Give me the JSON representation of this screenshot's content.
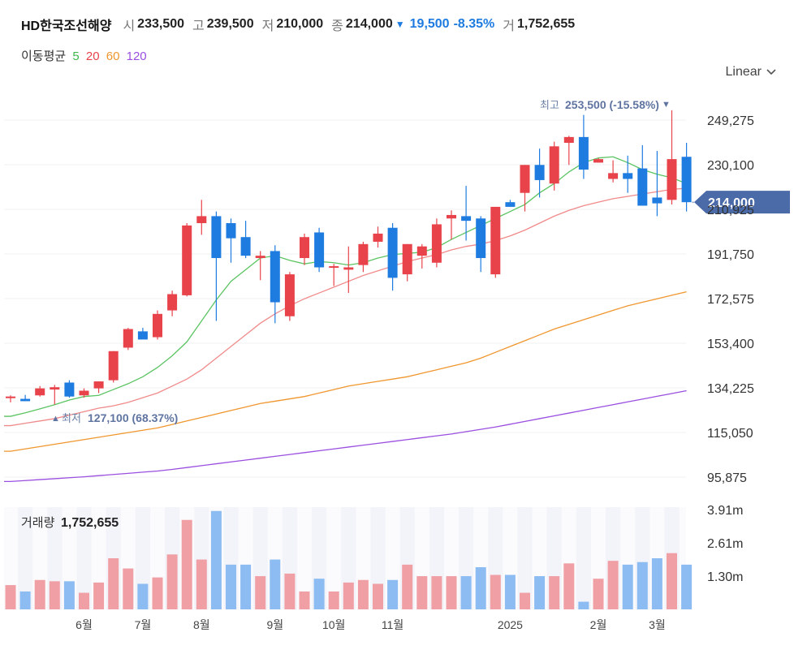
{
  "header": {
    "name": "HD한국조선해양",
    "open_label": "시",
    "open": "233,500",
    "high_label": "고",
    "high": "239,500",
    "low_label": "저",
    "low": "210,000",
    "close_label": "종",
    "close": "214,000",
    "change_arrow": "▼",
    "change": "19,500",
    "change_pct": "-8.35%",
    "volume_label": "거",
    "volume": "1,752,655"
  },
  "ma_legend": {
    "label": "이동평균",
    "periods": [
      {
        "text": "5",
        "color": "#3cb84a"
      },
      {
        "text": "20",
        "color": "#e8434a"
      },
      {
        "text": "60",
        "color": "#f0962e"
      },
      {
        "text": "120",
        "color": "#9a4fe0"
      }
    ]
  },
  "scale_toggle": {
    "label": "Linear",
    "icon": "chevron-down-icon"
  },
  "chart_data": {
    "type": "candlestick",
    "price_ticks": [
      "249,275",
      "230,100",
      "210,925",
      "191,750",
      "172,575",
      "153,400",
      "134,225",
      "115,050",
      "95,875"
    ],
    "price_range": [
      95875,
      249275
    ],
    "current_price_label": "214,000",
    "current_price": 214000,
    "max_annotation": {
      "label": "최고",
      "value": "253,500 (-15.58%)",
      "marker": "▼"
    },
    "min_annotation": {
      "label": "최저",
      "value": "127,100 (68.37%)",
      "marker": "▲"
    },
    "x_labels": [
      "6월",
      "7월",
      "8월",
      "9월",
      "10월",
      "11월",
      "2025",
      "2월",
      "3월"
    ],
    "x_label_index": [
      5,
      9,
      13,
      18,
      22,
      26,
      34,
      40,
      44
    ],
    "candles": [
      [
        130000,
        131000,
        128000,
        130500
      ],
      [
        129500,
        131200,
        128500,
        128500
      ],
      [
        131000,
        135000,
        130500,
        134000
      ],
      [
        133500,
        135500,
        127100,
        134500
      ],
      [
        136500,
        137500,
        130000,
        130500
      ],
      [
        131000,
        134000,
        130000,
        133000
      ],
      [
        134000,
        137000,
        132000,
        137000
      ],
      [
        137500,
        150000,
        136500,
        150000
      ],
      [
        151500,
        160000,
        150500,
        159500
      ],
      [
        158500,
        160000,
        156000,
        155000
      ],
      [
        156000,
        167500,
        155000,
        166000
      ],
      [
        167500,
        176000,
        165000,
        174500
      ],
      [
        174000,
        205000,
        173500,
        204000
      ],
      [
        205000,
        215000,
        200000,
        208000
      ],
      [
        208000,
        210000,
        163000,
        190000
      ],
      [
        205000,
        207000,
        188000,
        198500
      ],
      [
        199000,
        206000,
        190000,
        191000
      ],
      [
        190000,
        193000,
        180500,
        191000
      ],
      [
        193000,
        195500,
        162000,
        171000
      ],
      [
        165000,
        184000,
        163000,
        183000
      ],
      [
        190000,
        200500,
        187000,
        199000
      ],
      [
        201000,
        203000,
        184000,
        186000
      ],
      [
        186000,
        187500,
        178000,
        186500
      ],
      [
        185000,
        195000,
        175000,
        186000
      ],
      [
        187000,
        197000,
        184000,
        196000
      ],
      [
        197000,
        203500,
        194500,
        200500
      ],
      [
        203000,
        205000,
        176000,
        181500
      ],
      [
        183000,
        196000,
        180000,
        196000
      ],
      [
        191000,
        196000,
        185500,
        195000
      ],
      [
        188000,
        207000,
        186000,
        204500
      ],
      [
        207000,
        210500,
        198000,
        208500
      ],
      [
        208000,
        221000,
        197500,
        206000
      ],
      [
        207000,
        208000,
        184000,
        190000
      ],
      [
        183000,
        212000,
        181500,
        212000
      ],
      [
        214000,
        215000,
        212500,
        212000
      ],
      [
        218000,
        230000,
        210000,
        230000
      ],
      [
        230000,
        237000,
        216000,
        223500
      ],
      [
        222000,
        240000,
        219000,
        238000
      ],
      [
        239500,
        242500,
        230000,
        242000
      ],
      [
        242000,
        251500,
        224000,
        228000
      ],
      [
        231000,
        233000,
        231000,
        232500
      ],
      [
        224000,
        232000,
        222500,
        226500
      ],
      [
        226500,
        234000,
        218000,
        224000
      ],
      [
        228500,
        238500,
        213500,
        212500
      ],
      [
        216000,
        236000,
        208000,
        213500
      ],
      [
        215000,
        253500,
        213000,
        232500
      ],
      [
        233500,
        239500,
        210000,
        214000
      ]
    ],
    "ma5": [
      122000,
      123500,
      125200,
      127000,
      129000,
      130500,
      131000,
      133500,
      136000,
      139000,
      143000,
      148000,
      154000,
      163000,
      172000,
      180000,
      185000,
      190000,
      191000,
      189000,
      187500,
      188500,
      188000,
      187000,
      188000,
      190000,
      191500,
      192000,
      192500,
      194500,
      198000,
      201000,
      204000,
      207000,
      210000,
      213000,
      218000,
      222000,
      227000,
      231000,
      233000,
      233500,
      231000,
      228000,
      226000,
      224500,
      222000
    ],
    "ma20": [
      118000,
      119000,
      120000,
      121000,
      122500,
      124000,
      125500,
      126500,
      128000,
      130000,
      132000,
      135000,
      138000,
      142000,
      147000,
      152000,
      157000,
      162000,
      166000,
      169500,
      172500,
      175000,
      177500,
      180000,
      182500,
      184500,
      186500,
      188500,
      190000,
      191500,
      193500,
      195000,
      196000,
      197500,
      199500,
      202000,
      205000,
      208000,
      210500,
      212500,
      214000,
      215500,
      216500,
      217500,
      218500,
      219500,
      220000
    ],
    "ma60": [
      107000,
      108000,
      109000,
      110000,
      111000,
      112000,
      113000,
      114000,
      115000,
      116000,
      117000,
      118500,
      120000,
      121500,
      123000,
      124500,
      126000,
      127500,
      128500,
      129500,
      130500,
      132000,
      133500,
      135000,
      136000,
      137000,
      138000,
      139000,
      140500,
      142000,
      143500,
      145000,
      147000,
      149500,
      152000,
      154500,
      157000,
      159500,
      161500,
      163500,
      165500,
      167500,
      169500,
      171000,
      172500,
      174000,
      175500
    ],
    "ma120": [
      94000,
      94400,
      94800,
      95200,
      95600,
      96000,
      96500,
      97000,
      97500,
      98000,
      98500,
      99200,
      100000,
      100800,
      101600,
      102400,
      103200,
      104000,
      104800,
      105600,
      106400,
      107200,
      108000,
      108800,
      109600,
      110400,
      111200,
      112000,
      112800,
      113600,
      114400,
      115400,
      116400,
      117400,
      118600,
      119800,
      121000,
      122200,
      123400,
      124600,
      125800,
      127000,
      128200,
      129400,
      130600,
      131800,
      133000
    ],
    "volume": {
      "label": "거래량",
      "value": "1,752,655",
      "ticks": [
        "3.91m",
        "2.61m",
        "1.30m"
      ],
      "tick_values": [
        3.91,
        2.61,
        1.3
      ],
      "bars": [
        0.95,
        0.7,
        1.15,
        1.1,
        1.1,
        0.65,
        1.05,
        2.0,
        1.6,
        1.0,
        1.25,
        2.15,
        3.5,
        1.95,
        3.85,
        1.75,
        1.75,
        1.3,
        1.95,
        1.4,
        0.7,
        1.2,
        0.7,
        1.05,
        1.15,
        1.0,
        1.15,
        1.75,
        1.3,
        1.3,
        1.3,
        1.3,
        1.65,
        1.35,
        1.35,
        0.65,
        1.3,
        1.3,
        1.8,
        0.3,
        1.2,
        1.9,
        1.75,
        1.85,
        2.0,
        2.2,
        1.75
      ]
    }
  }
}
